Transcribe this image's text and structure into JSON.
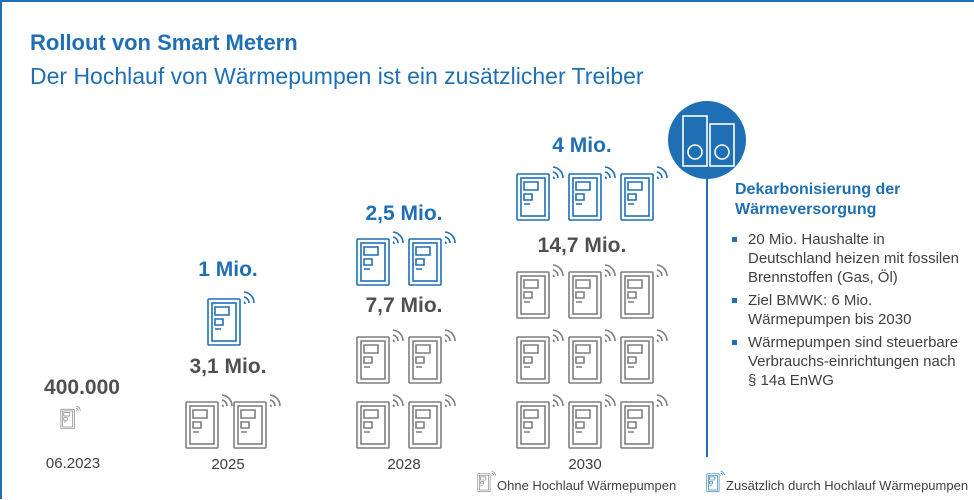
{
  "header": {
    "title": "Rollout von Smart Metern",
    "subtitle": "Der Hochlauf von Wärmepumpen ist ein zusätzlicher Treiber"
  },
  "columns": [
    {
      "total": "400.000",
      "year": "06.2023"
    },
    {
      "total": "3,1 Mio.",
      "additional": "1 Mio.",
      "year": "2025"
    },
    {
      "total": "7,7 Mio.",
      "additional": "2,5 Mio.",
      "year": "2028"
    },
    {
      "total": "14,7 Mio.",
      "additional": "4 Mio.",
      "year": "2030"
    }
  ],
  "sidebar": {
    "heading": "Dekarbonisierung der Wärmeversorgung",
    "bullets": [
      "20 Mio. Haushalte in Deutschland heizen mit fossilen Brennstoffen (Gas, Öl)",
      "Ziel BMWK: 6 Mio. Wärmepumpen bis 2030",
      "Wärmepumpen sind steuerbare Verbrauchs-einrichtungen nach § 14a EnWG"
    ]
  },
  "legend": [
    "Ohne Hochlauf Wärmepumpen",
    "Zusätzlich durch Hochlauf Wärmepumpen"
  ]
}
